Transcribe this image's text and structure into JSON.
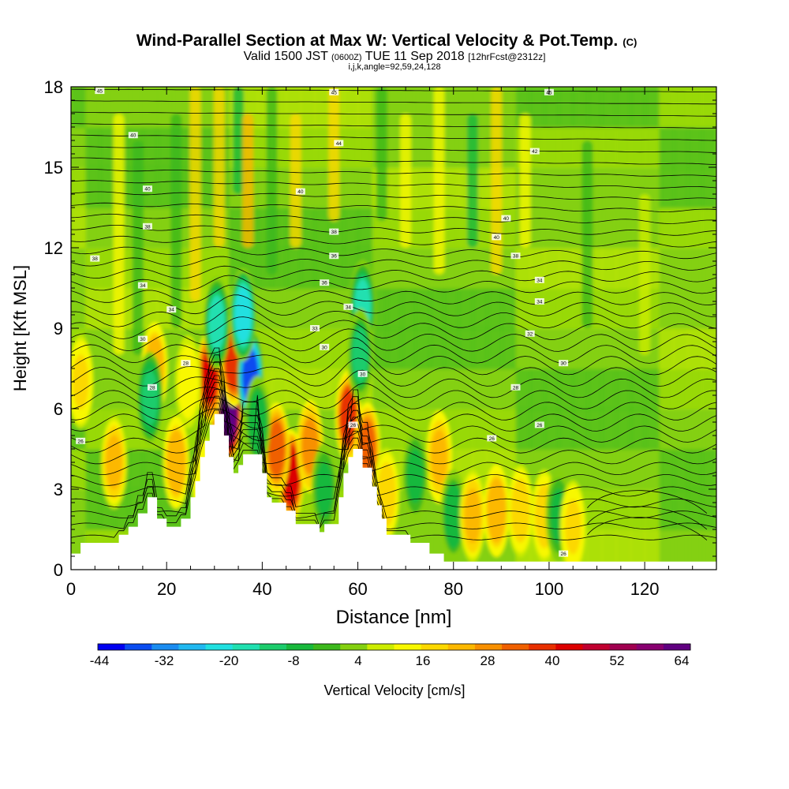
{
  "chart_data": {
    "type": "heatmap",
    "title": "Wind-Parallel Section at Max W: Vertical Velocity & Pot.Temp.",
    "title_mark": "(C)",
    "subtitle_parts": [
      "Valid 1500 JST ",
      "(0600Z)",
      " TUE 11 Sep 2018 ",
      "[12hrFcst@2312z]"
    ],
    "subtitle2": "i,j,k,angle=92,59,24,128",
    "xlabel": "Distance [nm]",
    "ylabel": "Height [Kft MSL]",
    "xlim": [
      0,
      135
    ],
    "ylim": [
      0,
      18
    ],
    "xticks": [
      0,
      20,
      40,
      60,
      80,
      100,
      120
    ],
    "yticks": [
      0,
      3,
      6,
      9,
      12,
      15,
      18
    ],
    "colorbar": {
      "label": "Vertical Velocity [cm/s]",
      "ticks": [
        -44,
        -32,
        -20,
        -8,
        4,
        16,
        28,
        40,
        52,
        64
      ],
      "min": -50,
      "max": 64,
      "colors": [
        "#0000f0",
        "#0a4cf0",
        "#1a8cf0",
        "#20b8f0",
        "#20e0e0",
        "#20e0b0",
        "#1ccc6c",
        "#18b83c",
        "#3cb81c",
        "#84d010",
        "#ccec00",
        "#f8f800",
        "#fcd800",
        "#fcb800",
        "#f89000",
        "#f06000",
        "#e83000",
        "#dc0000",
        "#c00030",
        "#a00050",
        "#880070",
        "#600080"
      ]
    },
    "terrain": [
      [
        0,
        0.6
      ],
      [
        2,
        0.6
      ],
      [
        2,
        1.0
      ],
      [
        10,
        1.0
      ],
      [
        10,
        1.3
      ],
      [
        12,
        1.3
      ],
      [
        12,
        1.6
      ],
      [
        14,
        1.6
      ],
      [
        14,
        2.1
      ],
      [
        16,
        2.1
      ],
      [
        16,
        2.7
      ],
      [
        18,
        2.7
      ],
      [
        18,
        1.9
      ],
      [
        20,
        1.9
      ],
      [
        20,
        1.6
      ],
      [
        23,
        1.6
      ],
      [
        23,
        1.9
      ],
      [
        25,
        1.9
      ],
      [
        25,
        2.7
      ],
      [
        26,
        2.7
      ],
      [
        26,
        3.3
      ],
      [
        27,
        3.3
      ],
      [
        27,
        4.2
      ],
      [
        28,
        4.2
      ],
      [
        28,
        4.8
      ],
      [
        29,
        4.8
      ],
      [
        29,
        5.4
      ],
      [
        30,
        5.4
      ],
      [
        30,
        5.8
      ],
      [
        32,
        5.8
      ],
      [
        32,
        5.0
      ],
      [
        33,
        5.0
      ],
      [
        33,
        4.2
      ],
      [
        34,
        4.2
      ],
      [
        34,
        3.6
      ],
      [
        35,
        3.6
      ],
      [
        35,
        3.9
      ],
      [
        36,
        3.9
      ],
      [
        36,
        4.3
      ],
      [
        40,
        4.3
      ],
      [
        40,
        3.6
      ],
      [
        41,
        3.6
      ],
      [
        41,
        2.7
      ],
      [
        42,
        2.7
      ],
      [
        42,
        2.5
      ],
      [
        45,
        2.5
      ],
      [
        45,
        2.2
      ],
      [
        47,
        2.2
      ],
      [
        47,
        1.7
      ],
      [
        52,
        1.7
      ],
      [
        52,
        1.4
      ],
      [
        53,
        1.4
      ],
      [
        53,
        1.7
      ],
      [
        56,
        1.7
      ],
      [
        56,
        2.7
      ],
      [
        57,
        2.7
      ],
      [
        57,
        3.6
      ],
      [
        58,
        3.6
      ],
      [
        58,
        4.2
      ],
      [
        59,
        4.2
      ],
      [
        59,
        4.5
      ],
      [
        61,
        4.5
      ],
      [
        61,
        3.8
      ],
      [
        63,
        3.8
      ],
      [
        63,
        3.1
      ],
      [
        64,
        3.1
      ],
      [
        64,
        2.4
      ],
      [
        65,
        2.4
      ],
      [
        65,
        1.9
      ],
      [
        66,
        1.9
      ],
      [
        66,
        1.3
      ],
      [
        71,
        1.3
      ],
      [
        71,
        1.0
      ],
      [
        75,
        1.0
      ],
      [
        75,
        0.6
      ],
      [
        78,
        0.6
      ],
      [
        78,
        0.3
      ],
      [
        135,
        0.3
      ]
    ],
    "w_features": [
      {
        "x": 31.5,
        "y": 6.5,
        "w": 60
      },
      {
        "x": 33,
        "y": 5.8,
        "w": 64
      },
      {
        "x": 29,
        "y": 7.2,
        "w": 40
      },
      {
        "x": 34,
        "y": 7.8,
        "w": 36
      },
      {
        "x": 37.5,
        "y": 7.2,
        "w": -44
      },
      {
        "x": 36,
        "y": 9.5,
        "w": -28
      },
      {
        "x": 30.5,
        "y": 9.2,
        "w": -22
      },
      {
        "x": 46,
        "y": 3.5,
        "w": 42
      },
      {
        "x": 43,
        "y": 4.5,
        "w": 32
      },
      {
        "x": 50,
        "y": 4.6,
        "w": 26
      },
      {
        "x": 58,
        "y": 5.7,
        "w": 34
      },
      {
        "x": 62,
        "y": 4.5,
        "w": 28
      },
      {
        "x": 61,
        "y": 9.8,
        "w": -24
      },
      {
        "x": 60.5,
        "y": 8.0,
        "w": -14
      },
      {
        "x": 17.5,
        "y": 7.5,
        "w": 22
      },
      {
        "x": 16.5,
        "y": 6.4,
        "w": -18
      },
      {
        "x": 22,
        "y": 4.0,
        "w": 22
      },
      {
        "x": 24.5,
        "y": 7.0,
        "w": 10
      },
      {
        "x": 28,
        "y": 3.2,
        "w": 12
      },
      {
        "x": 9,
        "y": 4.0,
        "w": 18
      },
      {
        "x": 2,
        "y": 7.0,
        "w": 14
      },
      {
        "x": 77,
        "y": 4.2,
        "w": 20
      },
      {
        "x": 80,
        "y": 2.0,
        "w": -12
      },
      {
        "x": 84,
        "y": 2.0,
        "w": 18
      },
      {
        "x": 89,
        "y": 2.2,
        "w": 22
      },
      {
        "x": 94,
        "y": 2.2,
        "w": 16
      },
      {
        "x": 99,
        "y": 2.0,
        "w": 16
      },
      {
        "x": 102,
        "y": 2.0,
        "w": -10
      },
      {
        "x": 105,
        "y": 1.6,
        "w": 14
      },
      {
        "x": 72,
        "y": 3.5,
        "w": -10
      },
      {
        "x": 66,
        "y": 2.8,
        "w": 16
      },
      {
        "x": 53,
        "y": 3.0,
        "w": -10
      },
      {
        "x": 39,
        "y": 5.5,
        "w": -12
      }
    ],
    "w_streaks": [
      {
        "x": 10,
        "y0": 8,
        "y1": 17,
        "w": 12
      },
      {
        "x": 14,
        "y0": 8,
        "y1": 16,
        "w": -8
      },
      {
        "x": 22,
        "y0": 9,
        "y1": 17,
        "w": -6
      },
      {
        "x": 26,
        "y0": 10,
        "y1": 18,
        "w": 14
      },
      {
        "x": 31,
        "y0": 12,
        "y1": 18,
        "w": 16
      },
      {
        "x": 35,
        "y0": 14,
        "y1": 18,
        "w": -10
      },
      {
        "x": 37,
        "y0": 12,
        "y1": 17,
        "w": 20
      },
      {
        "x": 42,
        "y0": 11,
        "y1": 18,
        "w": -6
      },
      {
        "x": 47,
        "y0": 12,
        "y1": 17,
        "w": 14
      },
      {
        "x": 55,
        "y0": 13,
        "y1": 18,
        "w": 16
      },
      {
        "x": 65,
        "y0": 13,
        "y1": 18,
        "w": -8
      },
      {
        "x": 70,
        "y0": 12,
        "y1": 17,
        "w": 10
      },
      {
        "x": 77,
        "y0": 11,
        "y1": 18,
        "w": 12
      },
      {
        "x": 84,
        "y0": 12,
        "y1": 17,
        "w": -10
      },
      {
        "x": 89,
        "y0": 11,
        "y1": 18,
        "w": 14
      },
      {
        "x": 95,
        "y0": 12,
        "y1": 17,
        "w": 10
      },
      {
        "x": 108,
        "y0": 9,
        "y1": 16,
        "w": -6
      },
      {
        "x": 120,
        "y0": 8,
        "y1": 14,
        "w": 6
      }
    ],
    "theta": {
      "levels_count": 40,
      "ground_y": [
        0.8,
        1.2,
        1.8
      ],
      "contour_labels": [
        {
          "x": 6,
          "y": 17.85,
          "text": "45"
        },
        {
          "x": 55,
          "y": 17.8,
          "text": "45"
        },
        {
          "x": 100,
          "y": 17.8,
          "text": "45"
        },
        {
          "x": 13,
          "y": 16.2,
          "text": "40"
        },
        {
          "x": 56,
          "y": 15.9,
          "text": "44"
        },
        {
          "x": 97,
          "y": 15.6,
          "text": "42"
        },
        {
          "x": 16,
          "y": 14.2,
          "text": "40"
        },
        {
          "x": 48,
          "y": 14.1,
          "text": "40"
        },
        {
          "x": 16,
          "y": 12.8,
          "text": "38"
        },
        {
          "x": 55,
          "y": 12.6,
          "text": "38"
        },
        {
          "x": 91,
          "y": 13.1,
          "text": "40"
        },
        {
          "x": 5,
          "y": 11.6,
          "text": "38"
        },
        {
          "x": 55,
          "y": 11.7,
          "text": "36"
        },
        {
          "x": 89,
          "y": 12.4,
          "text": "40"
        },
        {
          "x": 93,
          "y": 11.7,
          "text": "38"
        },
        {
          "x": 15,
          "y": 10.6,
          "text": "34"
        },
        {
          "x": 53,
          "y": 10.7,
          "text": "36"
        },
        {
          "x": 98,
          "y": 10.8,
          "text": "34"
        },
        {
          "x": 21,
          "y": 9.7,
          "text": "34"
        },
        {
          "x": 58,
          "y": 9.8,
          "text": "34"
        },
        {
          "x": 98,
          "y": 10.0,
          "text": "34"
        },
        {
          "x": 51,
          "y": 9.0,
          "text": "33"
        },
        {
          "x": 96,
          "y": 8.8,
          "text": "32"
        },
        {
          "x": 15,
          "y": 8.6,
          "text": "30"
        },
        {
          "x": 53,
          "y": 8.3,
          "text": "30"
        },
        {
          "x": 24,
          "y": 7.7,
          "text": "28"
        },
        {
          "x": 103,
          "y": 7.7,
          "text": "30"
        },
        {
          "x": 61,
          "y": 7.3,
          "text": "30"
        },
        {
          "x": 17,
          "y": 6.8,
          "text": "28"
        },
        {
          "x": 93,
          "y": 6.8,
          "text": "28"
        },
        {
          "x": 2,
          "y": 4.8,
          "text": "26"
        },
        {
          "x": 59,
          "y": 5.4,
          "text": "26"
        },
        {
          "x": 98,
          "y": 5.4,
          "text": "26"
        },
        {
          "x": 88,
          "y": 4.9,
          "text": "26"
        },
        {
          "x": 103,
          "y": 0.6,
          "text": "26"
        }
      ]
    }
  }
}
